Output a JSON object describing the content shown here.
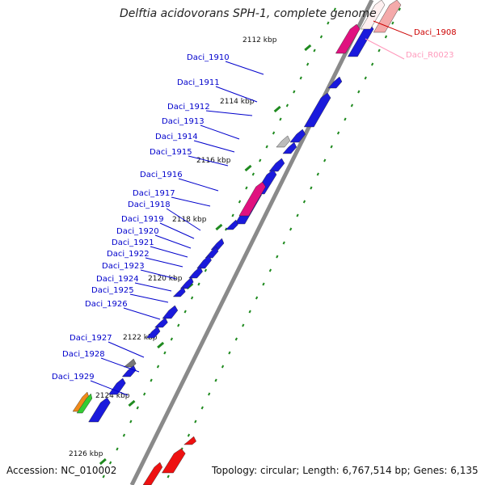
{
  "title": "Delftia acidovorans SPH-1, complete genome",
  "footer": {
    "accession": "Accession: NC_010002",
    "info": "Topology: circular; Length: 6,767,514 bp; Genes: 6,135"
  },
  "colors": {
    "gene_label": "#0000cc",
    "highlight_label": "#cc0000",
    "rna_label": "#ff99bb",
    "gene_blue": "#1a1adc",
    "gene_pink": "#e0117f",
    "backbone": "#8a8a8a",
    "tick_green": "#1f8a1f"
  },
  "kbp_ticks": [
    "2112 kbp",
    "2114 kbp",
    "2116 kbp",
    "2118 kbp",
    "2120 kbp",
    "2122 kbp",
    "2124 kbp",
    "2126 kbp"
  ],
  "gene_labels": [
    {
      "text": "Daci_1908",
      "kind": "highlight"
    },
    {
      "text": "Daci_R0023",
      "kind": "rna"
    },
    {
      "text": "Daci_1910",
      "kind": "gene"
    },
    {
      "text": "Daci_1911",
      "kind": "gene"
    },
    {
      "text": "Daci_1912",
      "kind": "gene"
    },
    {
      "text": "Daci_1913",
      "kind": "gene"
    },
    {
      "text": "Daci_1914",
      "kind": "gene"
    },
    {
      "text": "Daci_1915",
      "kind": "gene"
    },
    {
      "text": "Daci_1916",
      "kind": "gene"
    },
    {
      "text": "Daci_1917",
      "kind": "gene"
    },
    {
      "text": "Daci_1918",
      "kind": "gene"
    },
    {
      "text": "Daci_1919",
      "kind": "gene"
    },
    {
      "text": "Daci_1920",
      "kind": "gene"
    },
    {
      "text": "Daci_1921",
      "kind": "gene"
    },
    {
      "text": "Daci_1922",
      "kind": "gene"
    },
    {
      "text": "Daci_1923",
      "kind": "gene"
    },
    {
      "text": "Daci_1924",
      "kind": "gene"
    },
    {
      "text": "Daci_1925",
      "kind": "gene"
    },
    {
      "text": "Daci_1926",
      "kind": "gene"
    },
    {
      "text": "Daci_1927",
      "kind": "gene"
    },
    {
      "text": "Daci_1928",
      "kind": "gene"
    },
    {
      "text": "Daci_1929",
      "kind": "gene"
    }
  ]
}
